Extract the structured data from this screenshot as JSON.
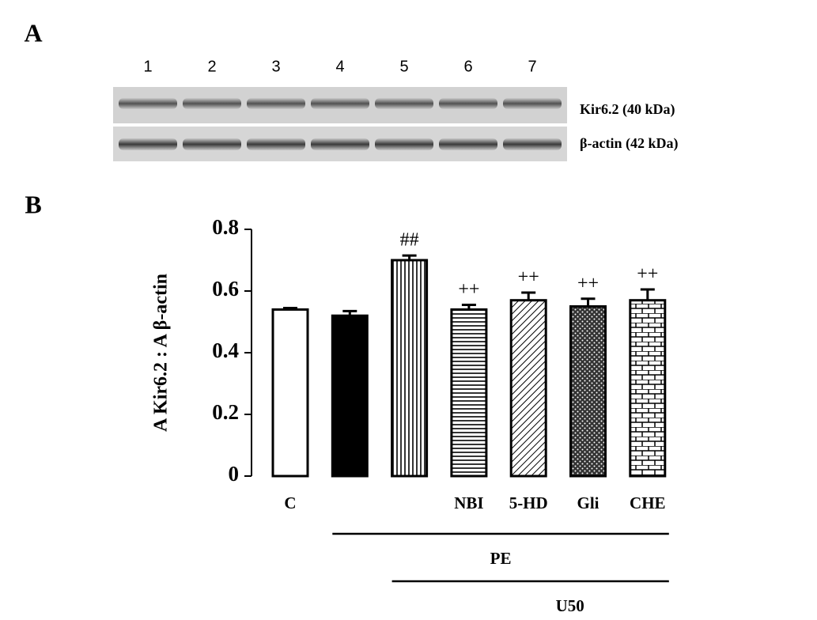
{
  "panel_labels": [
    "A",
    "B"
  ],
  "blot": {
    "lanes": [
      "1",
      "2",
      "3",
      "4",
      "5",
      "6",
      "7"
    ],
    "rows": [
      "Kir6.2 (40 kDa)",
      "β-actin (42 kDa)"
    ]
  },
  "chart_data": {
    "type": "bar",
    "ylabel": "A Kir6.2 : A β-actin",
    "categories": [
      "C",
      null,
      null,
      "NBI",
      "5-HD",
      "Gli",
      "CHE"
    ],
    "values": [
      0.54,
      0.52,
      0.7,
      0.54,
      0.57,
      0.55,
      0.57
    ],
    "errors": [
      0.005,
      0.015,
      0.015,
      0.015,
      0.025,
      0.025,
      0.035
    ],
    "value_annotations": [
      null,
      null,
      "##",
      "++",
      "++",
      "++",
      "++"
    ],
    "patterns": [
      "none",
      "solid",
      "vertical",
      "horizontal",
      "diagonal",
      "dots",
      "brick"
    ],
    "color": "#000000",
    "ylim": [
      0,
      0.8
    ],
    "yticks": [
      0,
      0.2,
      0.4,
      0.6,
      0.8
    ],
    "groups": [
      {
        "label": "PE",
        "from": 1,
        "to": 6
      },
      {
        "label": "U50",
        "from": 2,
        "to": 6
      }
    ]
  }
}
